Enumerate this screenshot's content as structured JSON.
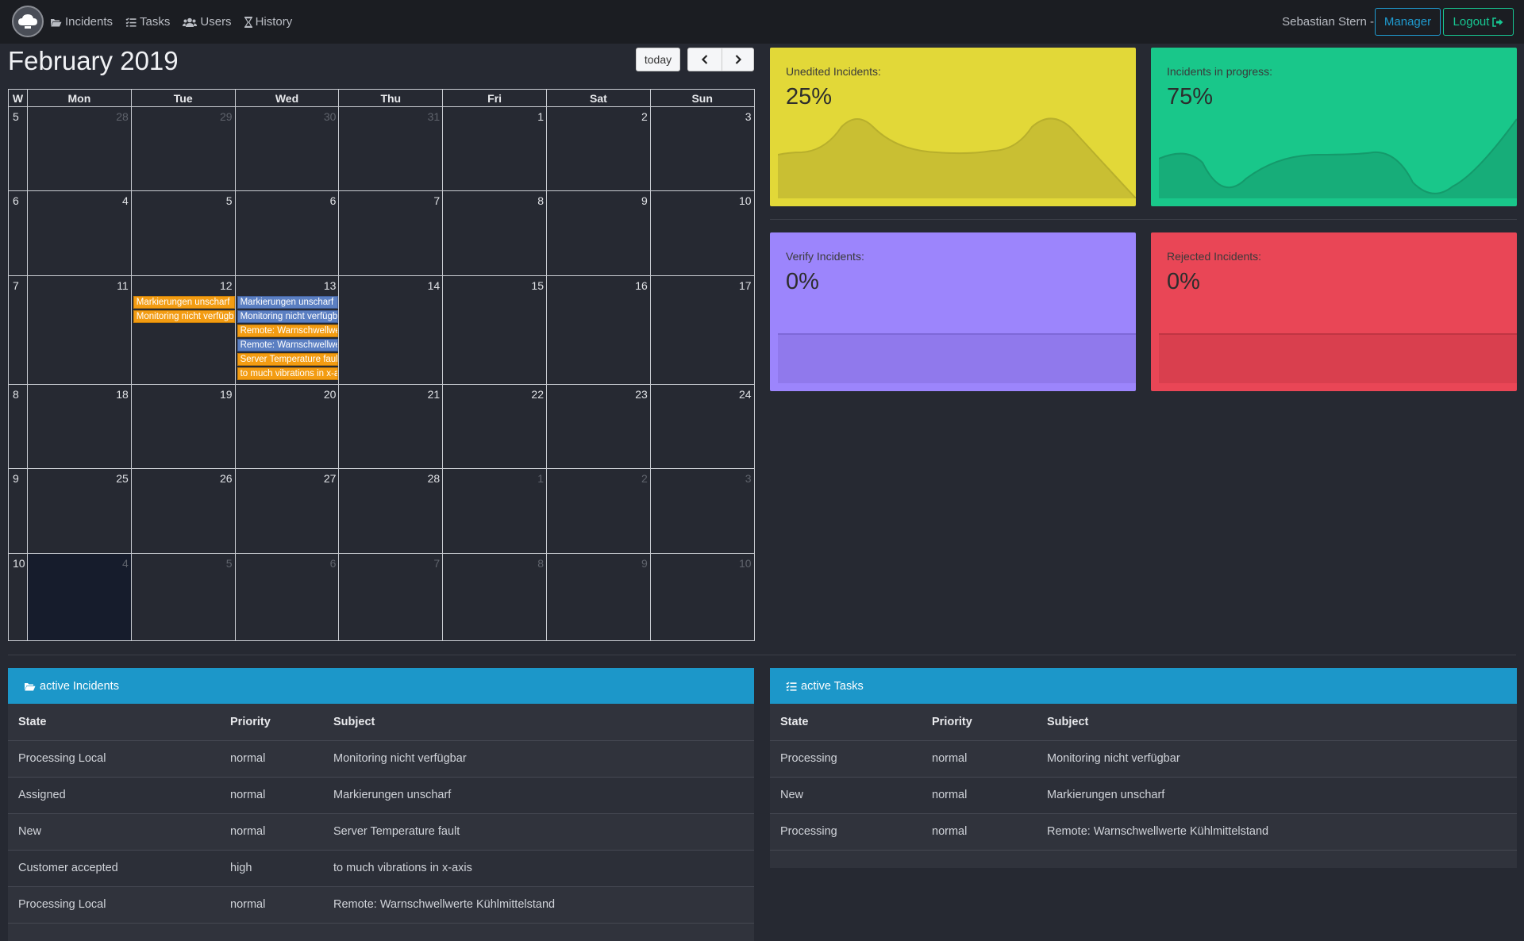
{
  "nav": {
    "items": [
      {
        "label": "Incidents",
        "icon": "folder-open-icon"
      },
      {
        "label": "Tasks",
        "icon": "tasks-icon"
      },
      {
        "label": "Users",
        "icon": "users-icon"
      },
      {
        "label": "History",
        "icon": "hourglass-icon"
      }
    ],
    "user": "Sebastian Stern -",
    "manager_label": "Manager",
    "logout_label": "Logout"
  },
  "calendar": {
    "title": "February 2019",
    "today_label": "today",
    "headers": [
      "W",
      "Mon",
      "Tue",
      "Wed",
      "Thu",
      "Fri",
      "Sat",
      "Sun"
    ],
    "weeks": [
      {
        "w": "5",
        "days": [
          {
            "d": "28",
            "o": true
          },
          {
            "d": "29",
            "o": true
          },
          {
            "d": "30",
            "o": true
          },
          {
            "d": "31",
            "o": true
          },
          {
            "d": "1"
          },
          {
            "d": "2"
          },
          {
            "d": "3"
          }
        ]
      },
      {
        "w": "6",
        "days": [
          {
            "d": "4"
          },
          {
            "d": "5"
          },
          {
            "d": "6"
          },
          {
            "d": "7"
          },
          {
            "d": "8"
          },
          {
            "d": "9"
          },
          {
            "d": "10"
          }
        ]
      },
      {
        "w": "7",
        "days": [
          {
            "d": "11"
          },
          {
            "d": "12"
          },
          {
            "d": "13"
          },
          {
            "d": "14"
          },
          {
            "d": "15"
          },
          {
            "d": "16"
          },
          {
            "d": "17"
          }
        ]
      },
      {
        "w": "8",
        "days": [
          {
            "d": "18"
          },
          {
            "d": "19"
          },
          {
            "d": "20"
          },
          {
            "d": "21"
          },
          {
            "d": "22"
          },
          {
            "d": "23"
          },
          {
            "d": "24"
          }
        ]
      },
      {
        "w": "9",
        "days": [
          {
            "d": "25"
          },
          {
            "d": "26"
          },
          {
            "d": "27"
          },
          {
            "d": "28"
          },
          {
            "d": "1",
            "o": true
          },
          {
            "d": "2",
            "o": true
          },
          {
            "d": "3",
            "o": true
          }
        ]
      },
      {
        "w": "10",
        "days": [
          {
            "d": "4",
            "o": true,
            "today": true
          },
          {
            "d": "5",
            "o": true
          },
          {
            "d": "6",
            "o": true
          },
          {
            "d": "7",
            "o": true
          },
          {
            "d": "8",
            "o": true
          },
          {
            "d": "9",
            "o": true
          },
          {
            "d": "10",
            "o": true
          }
        ]
      }
    ],
    "events": {
      "tue12": [
        {
          "label": "Markierungen unscharf",
          "color": "orange"
        },
        {
          "label": "Monitoring nicht verfügbar",
          "color": "orange"
        }
      ],
      "wed13": [
        {
          "label": "Markierungen unscharf",
          "color": "blue"
        },
        {
          "label": "Monitoring nicht verfügbar",
          "color": "blue"
        },
        {
          "label": "Remote: Warnschwellwerte Kühlmittelstand",
          "color": "orange"
        },
        {
          "label": "Remote: Warnschwellwerte Kühlmittelstand",
          "color": "blue"
        },
        {
          "label": "Server Temperature fault",
          "color": "orange"
        },
        {
          "label": "to much vibrations in x-axis",
          "color": "orange"
        }
      ]
    }
  },
  "stats": {
    "unedited": {
      "label": "Unedited Incidents:",
      "value": "25%",
      "color": "#e2d838"
    },
    "in_progress": {
      "label": "Incidents in progress:",
      "value": "75%",
      "color": "#19c78a"
    },
    "verify": {
      "label": "Verify Incidents:",
      "value": "0%",
      "color": "#9c85fc"
    },
    "rejected": {
      "label": "Rejected Incidents:",
      "value": "0%",
      "color": "#e94656"
    }
  },
  "incidents": {
    "title": "active Incidents",
    "columns": [
      "State",
      "Priority",
      "Subject"
    ],
    "rows": [
      [
        "Processing Local",
        "normal",
        "Monitoring nicht verfügbar"
      ],
      [
        "Assigned",
        "normal",
        "Markierungen unscharf"
      ],
      [
        "New",
        "normal",
        "Server Temperature fault"
      ],
      [
        "Customer accepted",
        "high",
        "to much vibrations in x-axis"
      ],
      [
        "Processing Local",
        "normal",
        "Remote: Warnschwellwerte Kühlmittelstand"
      ]
    ]
  },
  "tasks": {
    "title": "active Tasks",
    "columns": [
      "State",
      "Priority",
      "Subject"
    ],
    "rows": [
      [
        "Processing",
        "normal",
        "Monitoring nicht verfügbar"
      ],
      [
        "New",
        "normal",
        "Markierungen unscharf"
      ],
      [
        "Processing",
        "normal",
        "Remote: Warnschwellwerte Kühlmittelstand"
      ]
    ]
  }
}
